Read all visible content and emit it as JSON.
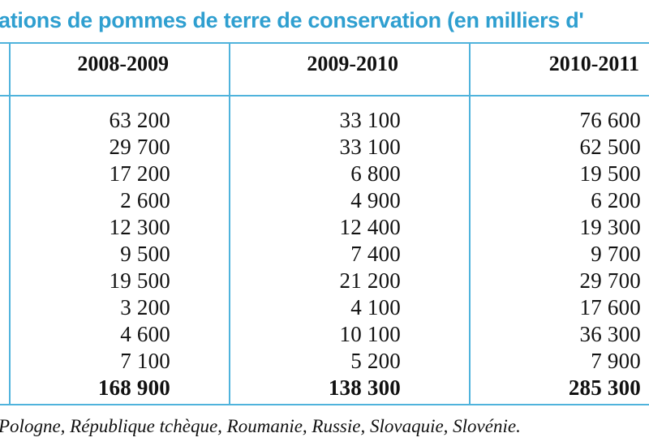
{
  "title": "ations de pommes de terre de conservation (en milliers d'",
  "columns": [
    "2008-2009",
    "2009-2010",
    "2010-2011"
  ],
  "rows": [
    [
      "63 200",
      "33 100",
      "76 600"
    ],
    [
      "29 700",
      "33 100",
      "62 500"
    ],
    [
      "17 200",
      "6 800",
      "19 500"
    ],
    [
      "2 600",
      "4 900",
      "6 200"
    ],
    [
      "12 300",
      "12 400",
      "19 300"
    ],
    [
      "9 500",
      "7 400",
      "9 700"
    ],
    [
      "19 500",
      "21 200",
      "29 700"
    ],
    [
      "3 200",
      "4 100",
      "17 600"
    ],
    [
      "4 600",
      "10 100",
      "36 300"
    ],
    [
      "7 100",
      "5 200",
      "7 900"
    ]
  ],
  "totals": [
    "168 900",
    "138 300",
    "285 300"
  ],
  "footnote": "Pologne, République tchèque, Roumanie, Russie, Slovaquie, Slovénie."
}
